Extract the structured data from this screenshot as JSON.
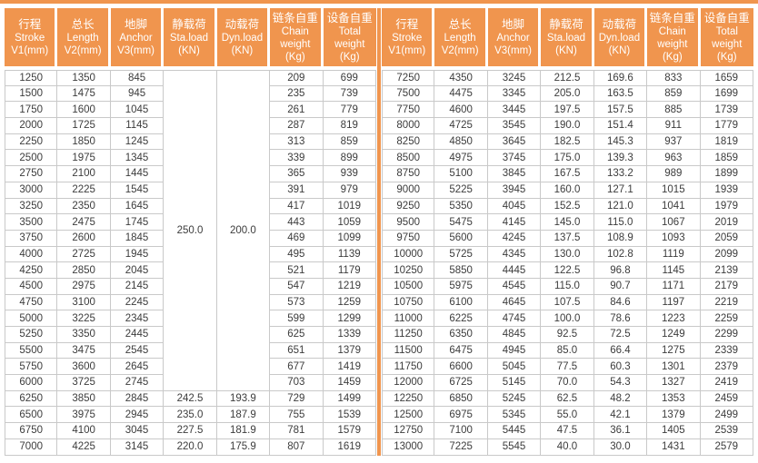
{
  "accent_color": "#F0954E",
  "grid_color": "#C9C9C9",
  "columns": [
    {
      "key": "stroke",
      "zh": "行程",
      "en": "Stroke",
      "unit": "V1(mm)"
    },
    {
      "key": "length",
      "zh": "总长",
      "en": "Length",
      "unit": "V2(mm)"
    },
    {
      "key": "anchor",
      "zh": "地脚",
      "en": "Anchor",
      "unit": "V3(mm)"
    },
    {
      "key": "sta-load",
      "zh": "静载荷",
      "en": "Sta.load",
      "unit": "(KN)"
    },
    {
      "key": "dyn-load",
      "zh": "动载荷",
      "en": "Dyn.load",
      "unit": "(KN)"
    },
    {
      "key": "chain-weight",
      "zh": "链条自重",
      "en": "Chain weight",
      "unit": "(Kg)"
    },
    {
      "key": "total-weight",
      "zh": "设备自重",
      "en": "Total weight",
      "unit": "(Kg)"
    }
  ],
  "tables": [
    {
      "name": "left",
      "merged": {
        "sta_load": "250.0",
        "dyn_load": "200.0",
        "row_span": 20
      },
      "rows": [
        [
          "1250",
          "1350",
          "845",
          "",
          "",
          "209",
          "699"
        ],
        [
          "1500",
          "1475",
          "945",
          "",
          "",
          "235",
          "739"
        ],
        [
          "1750",
          "1600",
          "1045",
          "",
          "",
          "261",
          "779"
        ],
        [
          "2000",
          "1725",
          "1145",
          "",
          "",
          "287",
          "819"
        ],
        [
          "2250",
          "1850",
          "1245",
          "",
          "",
          "313",
          "859"
        ],
        [
          "2500",
          "1975",
          "1345",
          "",
          "",
          "339",
          "899"
        ],
        [
          "2750",
          "2100",
          "1445",
          "",
          "",
          "365",
          "939"
        ],
        [
          "3000",
          "2225",
          "1545",
          "",
          "",
          "391",
          "979"
        ],
        [
          "3250",
          "2350",
          "1645",
          "",
          "",
          "417",
          "1019"
        ],
        [
          "3500",
          "2475",
          "1745",
          "",
          "",
          "443",
          "1059"
        ],
        [
          "3750",
          "2600",
          "1845",
          "",
          "",
          "469",
          "1099"
        ],
        [
          "4000",
          "2725",
          "1945",
          "",
          "",
          "495",
          "1139"
        ],
        [
          "4250",
          "2850",
          "2045",
          "",
          "",
          "521",
          "1179"
        ],
        [
          "4500",
          "2975",
          "2145",
          "",
          "",
          "547",
          "1219"
        ],
        [
          "4750",
          "3100",
          "2245",
          "",
          "",
          "573",
          "1259"
        ],
        [
          "5000",
          "3225",
          "2345",
          "",
          "",
          "599",
          "1299"
        ],
        [
          "5250",
          "3350",
          "2445",
          "",
          "",
          "625",
          "1339"
        ],
        [
          "5500",
          "3475",
          "2545",
          "",
          "",
          "651",
          "1379"
        ],
        [
          "5750",
          "3600",
          "2645",
          "",
          "",
          "677",
          "1419"
        ],
        [
          "6000",
          "3725",
          "2745",
          "",
          "",
          "703",
          "1459"
        ],
        [
          "6250",
          "3850",
          "2845",
          "242.5",
          "193.9",
          "729",
          "1499"
        ],
        [
          "6500",
          "3975",
          "2945",
          "235.0",
          "187.9",
          "755",
          "1539"
        ],
        [
          "6750",
          "4100",
          "3045",
          "227.5",
          "181.9",
          "781",
          "1579"
        ],
        [
          "7000",
          "4225",
          "3145",
          "220.0",
          "175.9",
          "807",
          "1619"
        ]
      ]
    },
    {
      "name": "right",
      "rows": [
        [
          "7250",
          "4350",
          "3245",
          "212.5",
          "169.6",
          "833",
          "1659"
        ],
        [
          "7500",
          "4475",
          "3345",
          "205.0",
          "163.5",
          "859",
          "1699"
        ],
        [
          "7750",
          "4600",
          "3445",
          "197.5",
          "157.5",
          "885",
          "1739"
        ],
        [
          "8000",
          "4725",
          "3545",
          "190.0",
          "151.4",
          "911",
          "1779"
        ],
        [
          "8250",
          "4850",
          "3645",
          "182.5",
          "145.3",
          "937",
          "1819"
        ],
        [
          "8500",
          "4975",
          "3745",
          "175.0",
          "139.3",
          "963",
          "1859"
        ],
        [
          "8750",
          "5100",
          "3845",
          "167.5",
          "133.2",
          "989",
          "1899"
        ],
        [
          "9000",
          "5225",
          "3945",
          "160.0",
          "127.1",
          "1015",
          "1939"
        ],
        [
          "9250",
          "5350",
          "4045",
          "152.5",
          "121.0",
          "1041",
          "1979"
        ],
        [
          "9500",
          "5475",
          "4145",
          "145.0",
          "115.0",
          "1067",
          "2019"
        ],
        [
          "9750",
          "5600",
          "4245",
          "137.5",
          "108.9",
          "1093",
          "2059"
        ],
        [
          "10000",
          "5725",
          "4345",
          "130.0",
          "102.8",
          "1119",
          "2099"
        ],
        [
          "10250",
          "5850",
          "4445",
          "122.5",
          "96.8",
          "1145",
          "2139"
        ],
        [
          "10500",
          "5975",
          "4545",
          "115.0",
          "90.7",
          "1171",
          "2179"
        ],
        [
          "10750",
          "6100",
          "4645",
          "107.5",
          "84.6",
          "1197",
          "2219"
        ],
        [
          "11000",
          "6225",
          "4745",
          "100.0",
          "78.6",
          "1223",
          "2259"
        ],
        [
          "11250",
          "6350",
          "4845",
          "92.5",
          "72.5",
          "1249",
          "2299"
        ],
        [
          "11500",
          "6475",
          "4945",
          "85.0",
          "66.4",
          "1275",
          "2339"
        ],
        [
          "11750",
          "6600",
          "5045",
          "77.5",
          "60.3",
          "1301",
          "2379"
        ],
        [
          "12000",
          "6725",
          "5145",
          "70.0",
          "54.3",
          "1327",
          "2419"
        ],
        [
          "12250",
          "6850",
          "5245",
          "62.5",
          "48.2",
          "1353",
          "2459"
        ],
        [
          "12500",
          "6975",
          "5345",
          "55.0",
          "42.1",
          "1379",
          "2499"
        ],
        [
          "12750",
          "7100",
          "5445",
          "47.5",
          "36.1",
          "1405",
          "2539"
        ],
        [
          "13000",
          "7225",
          "5545",
          "40.0",
          "30.0",
          "1431",
          "2579"
        ]
      ]
    }
  ]
}
